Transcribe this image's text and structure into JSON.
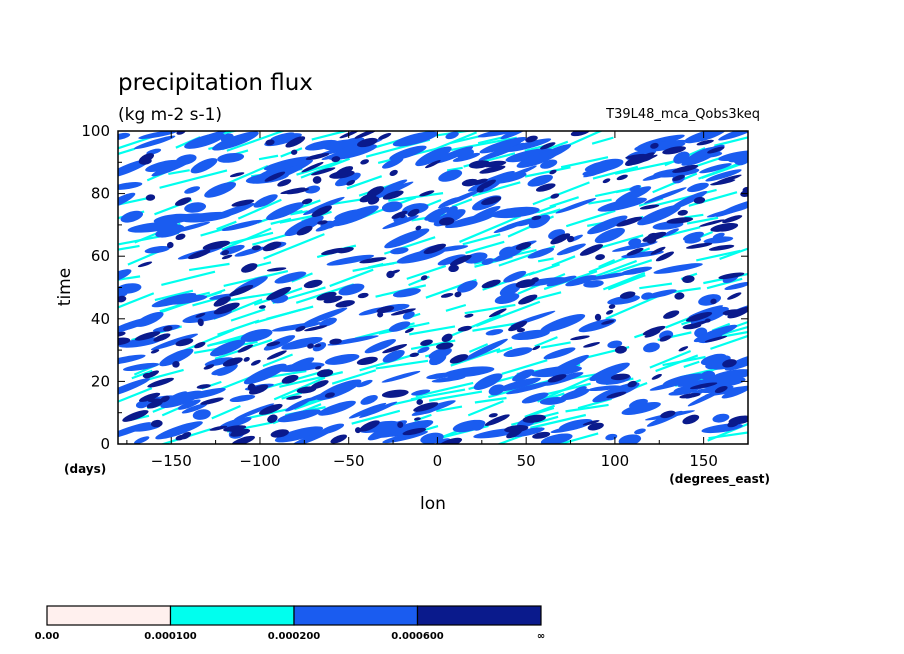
{
  "chart_data": {
    "type": "heatmap",
    "title": "precipitation flux",
    "units": "(kg m-2 s-1)",
    "experiment": "T39L48_mca_Qobs3keq",
    "xlabel": "lon",
    "ylabel": "time",
    "x_units": "(degrees_east)",
    "y_units": "(days)",
    "xlim": [
      -180,
      175
    ],
    "ylim": [
      0,
      100
    ],
    "x_ticks": [
      -150,
      -100,
      -50,
      0,
      50,
      100,
      150
    ],
    "y_ticks": [
      0,
      20,
      40,
      60,
      80,
      100
    ],
    "x_tick_labels": [
      "−150",
      "−100",
      "−50",
      "0",
      "50",
      "100",
      "150"
    ],
    "y_tick_labels": [
      "0",
      "20",
      "40",
      "60",
      "80",
      "100"
    ],
    "grid": false,
    "pattern": "streaks of precipitation propagating eastward (tilted lines over time)",
    "colorbar": {
      "boundaries": [
        "0.00",
        "0.000100",
        "0.000200",
        "0.000600",
        "∞"
      ],
      "colors": [
        "#fff0ee",
        "#00ffee",
        "#1a5cf0",
        "#0a1a8c"
      ]
    }
  }
}
